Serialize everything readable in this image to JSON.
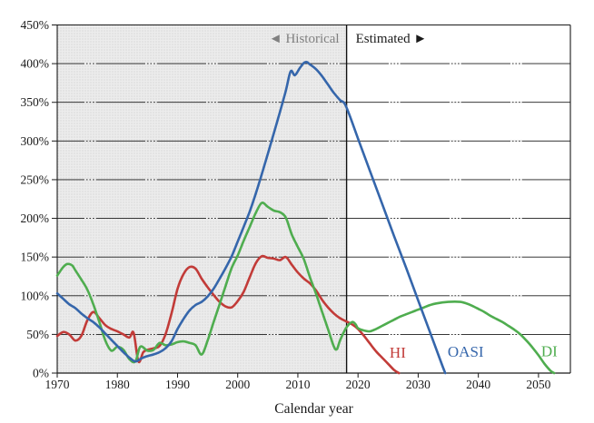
{
  "chart_data": {
    "type": "line",
    "title": "",
    "x_axis": {
      "label": "Calendar year",
      "min": 1970,
      "max": 2055.3,
      "ticks": [
        1970,
        1980,
        1990,
        2000,
        2010,
        2020,
        2030,
        2040,
        2050
      ]
    },
    "y_axis": {
      "min": 0,
      "max": 450,
      "tick_step": 50,
      "ticks": [
        0,
        50,
        100,
        150,
        200,
        250,
        300,
        350,
        400,
        450
      ],
      "tick_suffix": "%",
      "grid": true
    },
    "regions": {
      "historical": {
        "label": "◄ Historical",
        "start": 1970,
        "end": 2018.1,
        "fill": "#ececec",
        "dot_color": "#dcdcdc",
        "label_color": "#808080"
      },
      "estimated": {
        "label": "Estimated ►",
        "start": 2018.1,
        "end": 2055.3,
        "fill": "#ffffff",
        "label_color": "#1a1a1a"
      },
      "boundary_year": 2018.1
    },
    "series": [
      {
        "name": "HI",
        "label": "HI",
        "color": "#c23b38",
        "depletion_year": 2026.8,
        "points": [
          [
            1970,
            48
          ],
          [
            1971,
            53
          ],
          [
            1972,
            50
          ],
          [
            1973,
            42
          ],
          [
            1974,
            48
          ],
          [
            1975,
            68
          ],
          [
            1976,
            79
          ],
          [
            1977,
            71
          ],
          [
            1978,
            62
          ],
          [
            1979,
            57
          ],
          [
            1980,
            54
          ],
          [
            1981,
            50
          ],
          [
            1982,
            46
          ],
          [
            1982.7,
            52
          ],
          [
            1983.5,
            15
          ],
          [
            1984.3,
            27
          ],
          [
            1985,
            30
          ],
          [
            1986,
            32
          ],
          [
            1987,
            35
          ],
          [
            1988,
            50
          ],
          [
            1989,
            77
          ],
          [
            1990,
            109
          ],
          [
            1991,
            128
          ],
          [
            1992,
            137
          ],
          [
            1993,
            135
          ],
          [
            1994,
            122
          ],
          [
            1995,
            111
          ],
          [
            1996,
            101
          ],
          [
            1997,
            92
          ],
          [
            1998,
            86
          ],
          [
            1999,
            85
          ],
          [
            2000,
            93
          ],
          [
            2001,
            105
          ],
          [
            2002,
            124
          ],
          [
            2003,
            142
          ],
          [
            2004,
            151
          ],
          [
            2005,
            149
          ],
          [
            2006,
            148
          ],
          [
            2007,
            146
          ],
          [
            2008,
            150
          ],
          [
            2009,
            140
          ],
          [
            2010,
            130
          ],
          [
            2011,
            122
          ],
          [
            2012,
            116
          ],
          [
            2013,
            107
          ],
          [
            2014,
            95
          ],
          [
            2015,
            85
          ],
          [
            2016,
            77
          ],
          [
            2017,
            71
          ],
          [
            2018,
            67
          ],
          [
            2019,
            63
          ],
          [
            2020,
            57
          ],
          [
            2021,
            48
          ],
          [
            2022,
            38
          ],
          [
            2023,
            28
          ],
          [
            2024,
            20
          ],
          [
            2025,
            12
          ],
          [
            2026,
            4
          ],
          [
            2026.8,
            0
          ]
        ]
      },
      {
        "name": "DI",
        "label": "DI",
        "color": "#4fad4f",
        "depletion_year": 2052.6,
        "points": [
          [
            1970,
            126
          ],
          [
            1971,
            137
          ],
          [
            1971.7,
            141
          ],
          [
            1972.5,
            139
          ],
          [
            1973,
            133
          ],
          [
            1974,
            121
          ],
          [
            1975,
            108
          ],
          [
            1976,
            89
          ],
          [
            1977,
            66
          ],
          [
            1978,
            42
          ],
          [
            1979,
            29
          ],
          [
            1980,
            34
          ],
          [
            1981,
            30
          ],
          [
            1982,
            18
          ],
          [
            1983,
            15
          ],
          [
            1983.8,
            34
          ],
          [
            1985,
            29
          ],
          [
            1986,
            30
          ],
          [
            1987,
            39
          ],
          [
            1988,
            36
          ],
          [
            1989,
            37
          ],
          [
            1990,
            40
          ],
          [
            1991,
            41
          ],
          [
            1992,
            39
          ],
          [
            1993,
            36
          ],
          [
            1994,
            24
          ],
          [
            1995,
            42
          ],
          [
            1996,
            66
          ],
          [
            1997,
            89
          ],
          [
            1998,
            113
          ],
          [
            1999,
            136
          ],
          [
            2000,
            152
          ],
          [
            2001,
            171
          ],
          [
            2002,
            189
          ],
          [
            2003,
            207
          ],
          [
            2004,
            220
          ],
          [
            2005,
            215
          ],
          [
            2006,
            210
          ],
          [
            2007,
            208
          ],
          [
            2008,
            201
          ],
          [
            2009,
            179
          ],
          [
            2010,
            163
          ],
          [
            2011,
            147
          ],
          [
            2012,
            124
          ],
          [
            2013,
            103
          ],
          [
            2014,
            80
          ],
          [
            2015,
            57
          ],
          [
            2016,
            34
          ],
          [
            2016.5,
            31
          ],
          [
            2017,
            42
          ],
          [
            2018,
            58
          ],
          [
            2019,
            66
          ],
          [
            2019.6,
            63
          ],
          [
            2020,
            58
          ],
          [
            2021,
            55
          ],
          [
            2022,
            54
          ],
          [
            2023,
            57
          ],
          [
            2024,
            61
          ],
          [
            2025,
            65
          ],
          [
            2026,
            69
          ],
          [
            2027,
            73
          ],
          [
            2028,
            76
          ],
          [
            2029,
            79
          ],
          [
            2030,
            82
          ],
          [
            2031,
            85
          ],
          [
            2032,
            88
          ],
          [
            2033,
            90
          ],
          [
            2035,
            92
          ],
          [
            2037,
            92
          ],
          [
            2038,
            90
          ],
          [
            2039,
            87
          ],
          [
            2040,
            83
          ],
          [
            2041,
            79
          ],
          [
            2042,
            74
          ],
          [
            2043,
            70
          ],
          [
            2044,
            66
          ],
          [
            2045,
            61
          ],
          [
            2046,
            56
          ],
          [
            2047,
            50
          ],
          [
            2048,
            42
          ],
          [
            2049,
            33
          ],
          [
            2050,
            23
          ],
          [
            2051,
            12
          ],
          [
            2052,
            3
          ],
          [
            2052.6,
            0
          ]
        ]
      },
      {
        "name": "OASI",
        "label": "OASI",
        "color": "#3566ab",
        "depletion_year": 2034.5,
        "points": [
          [
            1970,
            103
          ],
          [
            1971,
            96
          ],
          [
            1972,
            89
          ],
          [
            1973,
            84
          ],
          [
            1974,
            77
          ],
          [
            1975,
            71
          ],
          [
            1976,
            66
          ],
          [
            1977,
            59
          ],
          [
            1978,
            51
          ],
          [
            1979,
            43
          ],
          [
            1980,
            35
          ],
          [
            1981,
            27
          ],
          [
            1982,
            20
          ],
          [
            1983,
            15
          ],
          [
            1984,
            19
          ],
          [
            1985,
            22
          ],
          [
            1986,
            24
          ],
          [
            1987,
            27
          ],
          [
            1988,
            32
          ],
          [
            1989,
            41
          ],
          [
            1990,
            57
          ],
          [
            1991,
            70
          ],
          [
            1992,
            81
          ],
          [
            1993,
            88
          ],
          [
            1994,
            92
          ],
          [
            1995,
            99
          ],
          [
            1996,
            109
          ],
          [
            1997,
            122
          ],
          [
            1998,
            136
          ],
          [
            1999,
            151
          ],
          [
            2000,
            170
          ],
          [
            2001,
            189
          ],
          [
            2002,
            209
          ],
          [
            2003,
            232
          ],
          [
            2004,
            257
          ],
          [
            2005,
            283
          ],
          [
            2006,
            310
          ],
          [
            2007,
            337
          ],
          [
            2008,
            365
          ],
          [
            2008.8,
            390
          ],
          [
            2009.5,
            385
          ],
          [
            2010.3,
            394
          ],
          [
            2011,
            401
          ],
          [
            2011.5,
            402
          ],
          [
            2012,
            399
          ],
          [
            2013,
            393
          ],
          [
            2014,
            384
          ],
          [
            2015,
            373
          ],
          [
            2016,
            362
          ],
          [
            2017,
            353
          ],
          [
            2018,
            345
          ],
          [
            2020,
            303
          ],
          [
            2022,
            261
          ],
          [
            2024,
            219
          ],
          [
            2026,
            177
          ],
          [
            2028,
            136
          ],
          [
            2030,
            94
          ],
          [
            2032,
            52
          ],
          [
            2034,
            10
          ],
          [
            2034.5,
            0
          ]
        ]
      }
    ],
    "legend_position": "inline-labels-near-lines",
    "grid_color": "#1a1a1a",
    "axis_text_color": "#1a1a1a"
  }
}
